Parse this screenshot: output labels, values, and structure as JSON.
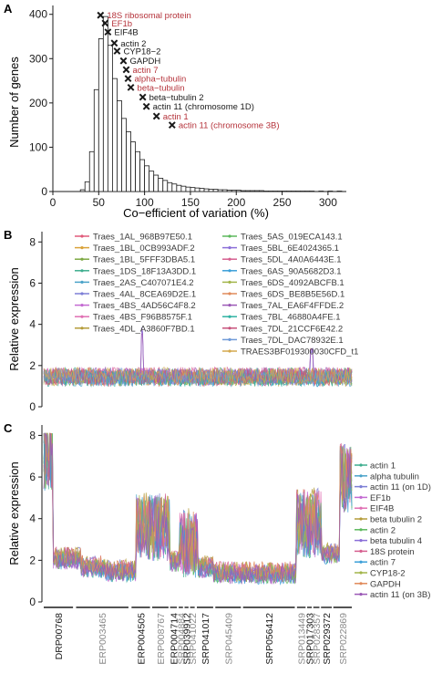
{
  "chart_data": [
    {
      "panel_label": "A",
      "type": "bar",
      "xlabel": "Co−efficient of variation (%)",
      "ylabel": "Number of genes",
      "xlim": [
        0,
        320
      ],
      "ylim": [
        0,
        420
      ],
      "xticks": [
        0,
        50,
        100,
        150,
        200,
        250,
        300
      ],
      "yticks": [
        0,
        100,
        200,
        300,
        400
      ],
      "bin_width": 5,
      "bins_start": [
        30,
        35,
        40,
        45,
        50,
        55,
        60,
        65,
        70,
        75,
        80,
        85,
        90,
        95,
        100,
        105,
        110,
        115,
        120,
        125,
        130,
        135,
        140,
        145,
        150,
        155,
        160,
        165,
        170,
        175,
        180,
        185,
        190,
        195,
        200,
        205,
        210,
        215,
        220,
        225,
        230,
        235,
        240,
        245,
        250,
        255,
        260,
        265,
        270,
        275,
        280,
        285,
        290,
        295,
        300,
        305,
        310
      ],
      "counts": [
        4,
        22,
        90,
        230,
        345,
        395,
        330,
        255,
        205,
        165,
        135,
        112,
        90,
        72,
        58,
        46,
        37,
        30,
        25,
        20,
        17,
        14,
        12,
        10,
        9,
        8,
        7,
        6,
        5,
        5,
        4,
        4,
        3,
        3,
        3,
        2,
        2,
        2,
        2,
        2,
        1,
        1,
        1,
        1,
        1,
        1,
        1,
        1,
        1,
        1,
        1,
        0,
        1,
        0,
        1,
        0,
        1
      ],
      "annotations": [
        {
          "label": "18S ribosomal protein",
          "x": 52,
          "y": 398,
          "color": "#b5333b"
        },
        {
          "label": "EF1b",
          "x": 57,
          "y": 380,
          "color": "#b5333b"
        },
        {
          "label": "EIF4B",
          "x": 60,
          "y": 360,
          "color": "#1a1a1a"
        },
        {
          "label": "actin 2",
          "x": 67,
          "y": 335,
          "color": "#1a1a1a"
        },
        {
          "label": "CYP18−2",
          "x": 70,
          "y": 317,
          "color": "#1a1a1a"
        },
        {
          "label": "GAPDH",
          "x": 77,
          "y": 295,
          "color": "#1a1a1a"
        },
        {
          "label": "actin 7",
          "x": 80,
          "y": 275,
          "color": "#b5333b"
        },
        {
          "label": "alpha−tubulin",
          "x": 82,
          "y": 255,
          "color": "#b5333b"
        },
        {
          "label": "beta−tubulin",
          "x": 85,
          "y": 235,
          "color": "#b5333b"
        },
        {
          "label": "beta−tubulin 2",
          "x": 98,
          "y": 213,
          "color": "#1a1a1a"
        },
        {
          "label": "actin 11 (chromosome 1D)",
          "x": 102,
          "y": 192,
          "color": "#1a1a1a"
        },
        {
          "label": "actin 1",
          "x": 113,
          "y": 170,
          "color": "#b5333b"
        },
        {
          "label": "actin 11 (chromosome 3B)",
          "x": 130,
          "y": 150,
          "color": "#b5333b"
        }
      ]
    },
    {
      "panel_label": "B",
      "type": "line",
      "ylabel": "Relative expression",
      "ylim": [
        0,
        8.5
      ],
      "yticks": [
        0,
        2,
        4,
        6,
        8
      ],
      "n_points": 300,
      "legend_col1": [
        "Traes_1AL_968B97E50.1",
        "Traes_1BL_0CB993ADF.2",
        "Traes_1BL_5FFF3DBA5.1",
        "Traes_1DS_18F13A3DD.1",
        "Traes_2AS_C407071E4.2",
        "Traes_4AL_8CEA69D2E.1",
        "Traes_4BS_4AD56C4F8.2",
        "Traes_4BS_F96B8575F.1",
        "Traes_4DL_A3860F7BD.1"
      ],
      "legend_col2": [
        "Traes_5AS_019ECA143.1",
        "Traes_5BL_6E4024365.1",
        "Traes_5DL_4A0A6443E.1",
        "Traes_6AS_90A5682D3.1",
        "Traes_6DS_4092ABCFB.1",
        "Traes_6DS_BE8B5E56D.1",
        "Traes_7AL_EA6F4FFDE.2",
        "Traes_7BL_46880A4FE.1",
        "Traes_7DL_21CCF6E42.2",
        "Traes_7DL_DAC78932E.1",
        "TRAES3BF019300030CFD_t1"
      ],
      "typical_range": [
        1.0,
        1.9
      ],
      "peaks": [
        {
          "pos": 0.32,
          "value": 3.9
        },
        {
          "pos": 0.87,
          "value": 2.9
        }
      ]
    },
    {
      "panel_label": "C",
      "type": "line",
      "ylabel": "Relative expression",
      "ylim": [
        0,
        8.5
      ],
      "yticks": [
        0,
        2,
        4,
        6,
        8
      ],
      "n_points": 320,
      "legend": [
        "actin 1",
        "alpha tubulin",
        "actin 11 (on 1D)",
        "EF1b",
        "EIF4B",
        "beta tubulin 2",
        "actin 2",
        "beta tubulin 4",
        "18S protein",
        "actin 7",
        "CYP18-2",
        "GAPDH",
        "actin 11 (on 3B)"
      ],
      "level_segments": [
        {
          "from": 0.0,
          "to": 0.03,
          "level": 7.0
        },
        {
          "from": 0.03,
          "to": 0.12,
          "level": 2.1
        },
        {
          "from": 0.12,
          "to": 0.2,
          "level": 1.7
        },
        {
          "from": 0.2,
          "to": 0.3,
          "level": 1.5
        },
        {
          "from": 0.3,
          "to": 0.41,
          "level": 3.6
        },
        {
          "from": 0.41,
          "to": 0.44,
          "level": 2.0
        },
        {
          "from": 0.44,
          "to": 0.5,
          "level": 2.8
        },
        {
          "from": 0.5,
          "to": 0.55,
          "level": 1.7
        },
        {
          "from": 0.55,
          "to": 0.7,
          "level": 1.4
        },
        {
          "from": 0.7,
          "to": 0.82,
          "level": 1.4
        },
        {
          "from": 0.82,
          "to": 0.9,
          "level": 3.8
        },
        {
          "from": 0.9,
          "to": 0.96,
          "level": 2.3
        },
        {
          "from": 0.96,
          "to": 1.0,
          "level": 6.0
        }
      ],
      "study_groups": [
        {
          "label": "DRP00768",
          "start": 0.0,
          "end": 0.095,
          "color": "#1a1a1a"
        },
        {
          "label": "ERP003465",
          "start": 0.105,
          "end": 0.275,
          "color": "#8a8a8a"
        },
        {
          "label": "ERP004505",
          "start": 0.285,
          "end": 0.345,
          "color": "#1a1a1a"
        },
        {
          "label": "ERP008767",
          "start": 0.352,
          "end": 0.405,
          "color": "#8a8a8a"
        },
        {
          "label": "ERP004714",
          "start": 0.41,
          "end": 0.432,
          "color": "#1a1a1a"
        },
        {
          "label": "SRP004884",
          "start": 0.438,
          "end": 0.452,
          "color": "#8a8a8a"
        },
        {
          "label": "SRP039912",
          "start": 0.457,
          "end": 0.47,
          "color": "#1a1a1a"
        },
        {
          "label": "SRP041022",
          "start": 0.475,
          "end": 0.49,
          "color": "#8a8a8a"
        },
        {
          "label": "SRP041017",
          "start": 0.497,
          "end": 0.55,
          "color": "#1a1a1a"
        },
        {
          "label": "SRP045409",
          "start": 0.557,
          "end": 0.64,
          "color": "#8a8a8a"
        },
        {
          "label": "SRP056412",
          "start": 0.647,
          "end": 0.815,
          "color": "#1a1a1a"
        },
        {
          "label": "SRP013449",
          "start": 0.822,
          "end": 0.85,
          "color": "#8a8a8a"
        },
        {
          "label": "SRP017303",
          "start": 0.855,
          "end": 0.87,
          "color": "#1a1a1a"
        },
        {
          "label": "SRP028357",
          "start": 0.875,
          "end": 0.895,
          "color": "#8a8a8a"
        },
        {
          "label": "SRP029372",
          "start": 0.9,
          "end": 0.935,
          "color": "#1a1a1a"
        },
        {
          "label": "SRP022869",
          "start": 0.94,
          "end": 1.0,
          "color": "#8a8a8a"
        }
      ]
    }
  ],
  "palette": [
    "#e05a7a",
    "#d9a23a",
    "#7ea944",
    "#3fae8f",
    "#4aa3c9",
    "#7d7fd6",
    "#c46ad2",
    "#e06fb3",
    "#b49c3a",
    "#5cb85c",
    "#8b6fd8",
    "#d65f8f",
    "#3b9fd8",
    "#a3b54a",
    "#e08a5a",
    "#9b59b6",
    "#2fb3a3",
    "#c7527c",
    "#6f9ad8",
    "#d4a94e"
  ]
}
